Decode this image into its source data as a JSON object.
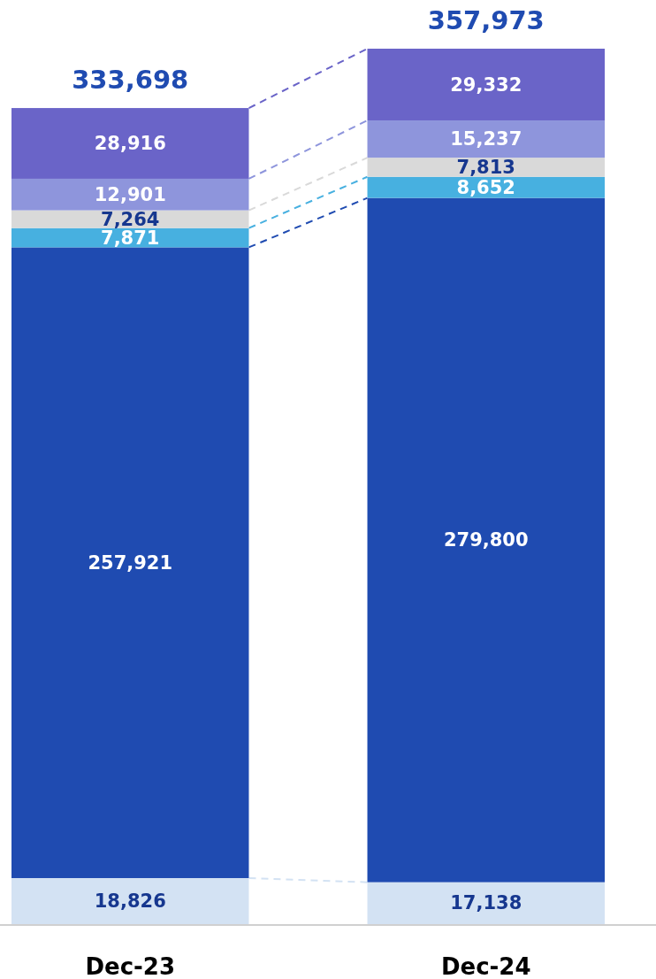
{
  "chart_data": {
    "type": "bar",
    "categories": [
      "Dec-23",
      "Dec-24"
    ],
    "stacked": true,
    "totals": [
      "333,698",
      "357,973"
    ],
    "series": [
      {
        "color": "#d3e2f3",
        "values": [
          18826,
          17138
        ],
        "value_labels": [
          "18,826",
          "17,138"
        ]
      },
      {
        "color": "#1f4bb1",
        "values": [
          257921,
          279800
        ],
        "value_labels": [
          "257,921",
          "279,800"
        ]
      },
      {
        "color": "#47b0e0",
        "values": [
          7871,
          8652
        ],
        "value_labels": [
          "7,871",
          "8,652"
        ]
      },
      {
        "color": "#d9d9d9",
        "values": [
          7264,
          7813
        ],
        "value_labels": [
          "7,264",
          "7,813"
        ]
      },
      {
        "color": "#8e95dc",
        "values": [
          12901,
          15237
        ],
        "value_labels": [
          "12,901",
          "15,237"
        ]
      },
      {
        "color": "#6a64c8",
        "values": [
          28916,
          29332
        ],
        "value_labels": [
          "28,916",
          "29,332"
        ]
      }
    ]
  }
}
